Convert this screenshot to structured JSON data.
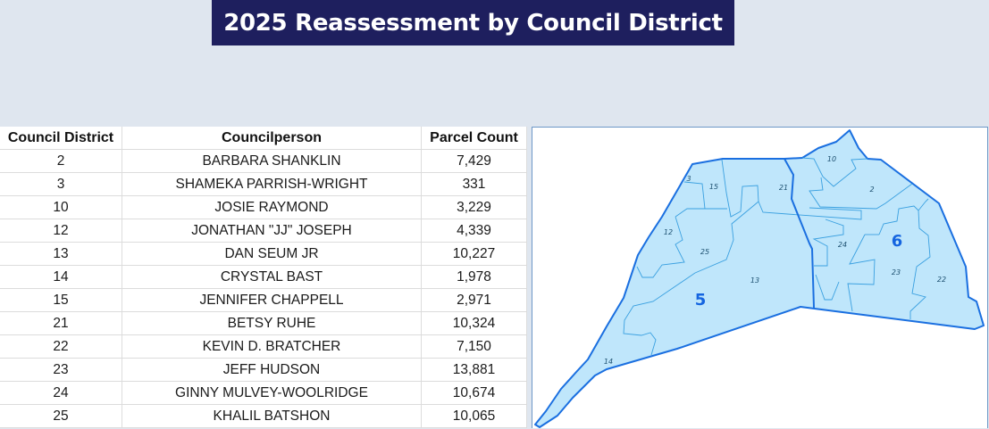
{
  "title": "2025 Reassessment by Council District",
  "table": {
    "headers": [
      "Council District",
      "Councilperson",
      "Parcel Count"
    ],
    "rows": [
      [
        "2",
        "BARBARA SHANKLIN",
        "7,429"
      ],
      [
        "3",
        "SHAMEKA PARRISH-WRIGHT",
        "331"
      ],
      [
        "10",
        "JOSIE RAYMOND",
        "3,229"
      ],
      [
        "12",
        "JONATHAN \"JJ\" JOSEPH",
        "4,339"
      ],
      [
        "13",
        "DAN SEUM JR",
        "10,227"
      ],
      [
        "14",
        "CRYSTAL BAST",
        "1,978"
      ],
      [
        "15",
        "JENNIFER CHAPPELL",
        "2,971"
      ],
      [
        "21",
        "BETSY RUHE",
        "10,324"
      ],
      [
        "22",
        "KEVIN D. BRATCHER",
        "7,150"
      ],
      [
        "23",
        "JEFF HUDSON",
        "13,881"
      ],
      [
        "24",
        "GINNY MULVEY-WOOLRIDGE",
        "10,674"
      ],
      [
        "25",
        "KHALIL BATSHON",
        "10,065"
      ]
    ]
  },
  "map": {
    "district_labels": [
      "3",
      "15",
      "21",
      "10",
      "2",
      "12",
      "25",
      "24",
      "23",
      "22",
      "13",
      "14"
    ],
    "area_labels": [
      "5",
      "6"
    ],
    "colors": {
      "fill": "#bfe6fb",
      "outline": "#1a6fe0",
      "inner": "#3aa0e0"
    }
  }
}
